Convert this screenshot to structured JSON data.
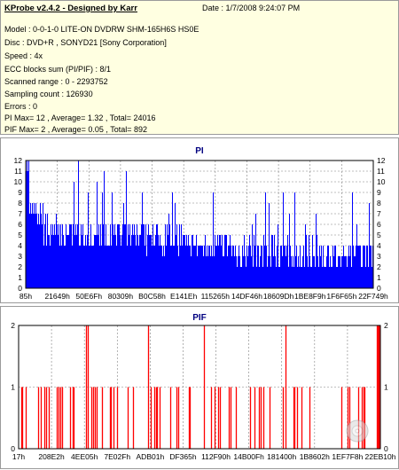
{
  "header": {
    "title": "KProbe v2.4.2 - Designed by Karr",
    "date": "Date : 1/7/2008 9:24:07 PM",
    "lines": [
      "Model : 0-0-1-0 LITE-ON DVDRW SHM-165H6S HS0E",
      "Disc : DVD+R , SONYD21 [Sony Corporation]",
      "Speed : 4x",
      "ECC blocks sum (PI/PIF) : 8/1",
      "Scanned range : 0 - 2293752",
      "Sampling count : 126930",
      "Errors : 0",
      "PI Max= 12 , Average= 1.32 , Total= 24016",
      "PIF Max= 2 , Average= 0.05 , Total= 892"
    ]
  },
  "colors": {
    "background": "#ffffff",
    "info_panel": "#ffffe1",
    "pi_bars": "#0000ff",
    "pif_bars": "#ff0000",
    "grid": "#808080",
    "title_text": "#000080"
  },
  "chart_data": [
    {
      "type": "bar",
      "title": "PI",
      "ylim": [
        0,
        12
      ],
      "yticks": [
        0,
        1,
        2,
        3,
        4,
        5,
        6,
        7,
        8,
        9,
        10,
        11,
        12
      ],
      "xticks": [
        "85h",
        "21649h",
        "50E6Fh",
        "80309h",
        "B0C58h",
        "E141Eh",
        "115265h",
        "14DF46h",
        "18609Dh",
        "1BE8F9h",
        "1F6F65h",
        "22F749h"
      ],
      "grid": "dashed",
      "max": 12,
      "average": 1.32,
      "total": 24016
    },
    {
      "type": "bar",
      "title": "PIF",
      "ylim": [
        0,
        2
      ],
      "yticks": [
        0,
        1,
        2
      ],
      "xticks": [
        "17h",
        "208E2h",
        "4EE05h",
        "7E02Fh",
        "ADB01h",
        "DF365h",
        "112F90h",
        "14B00Fh",
        "181400h",
        "1B8602h",
        "1EF7F8h",
        "22EB10h"
      ],
      "grid": "dashed",
      "max": 2,
      "average": 0.05,
      "total": 892
    }
  ]
}
